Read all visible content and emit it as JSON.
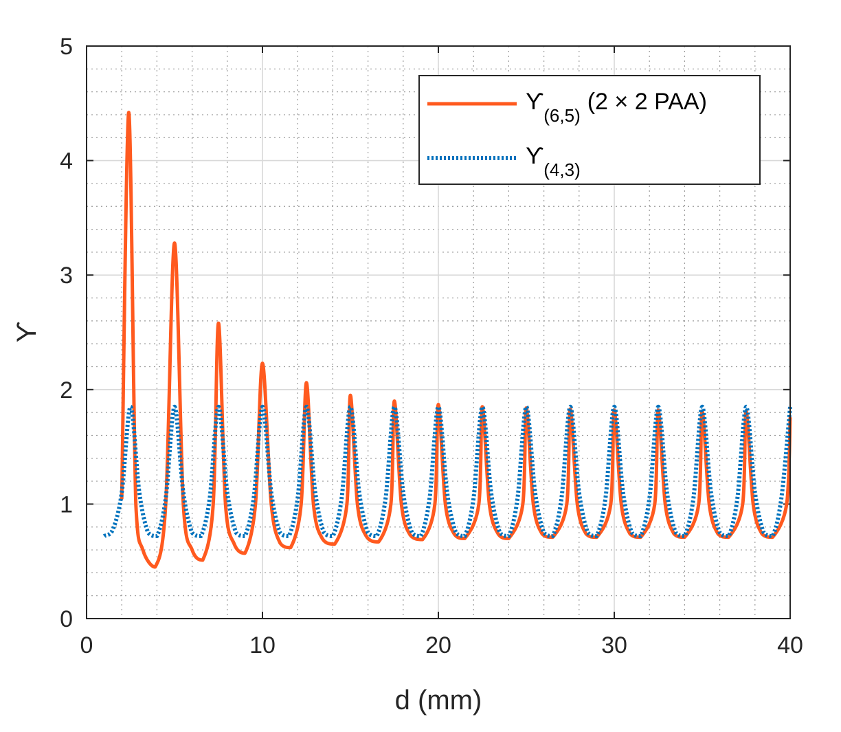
{
  "chart_data": {
    "type": "line",
    "title": "",
    "xlabel": "d (mm)",
    "ylabel": "ϒ",
    "xlim": [
      0,
      40
    ],
    "ylim": [
      0,
      5
    ],
    "xticks": [
      0,
      10,
      20,
      30,
      40
    ],
    "yticks": [
      0,
      1,
      2,
      3,
      4,
      5
    ],
    "grid": true,
    "minor_grid": true,
    "legend_position": "top-right",
    "colors": {
      "series1": "#FF5A1F",
      "series2": "#0072BD"
    },
    "series": [
      {
        "name": "ϒ(6,5) (2 × 2 PAA)",
        "legend_symbol": "ϒ",
        "legend_subscript": "(6,5)",
        "legend_suffix": "(2 × 2 PAA)",
        "style": "solid",
        "x": [
          2.0,
          2.4,
          2.8,
          3.2,
          3.9,
          4.5,
          5.0,
          5.5,
          6.0,
          6.6,
          7.2,
          7.5,
          7.9,
          8.4,
          9.0,
          9.6,
          10.0,
          10.5,
          11.0,
          11.6,
          12.2,
          12.5,
          12.9,
          13.4,
          14.1,
          14.8,
          15.0,
          15.4,
          15.9,
          16.6,
          17.3,
          17.5,
          17.9,
          18.4,
          19.1,
          19.8,
          20.0,
          20.4,
          20.9,
          21.5,
          22.3,
          22.5,
          22.9,
          23.4,
          24.0,
          24.8,
          25.0,
          25.4,
          25.9,
          26.5,
          27.3,
          27.5,
          27.9,
          28.4,
          29.0,
          29.8,
          30.0,
          30.4,
          30.9,
          31.5,
          32.3,
          32.5,
          32.9,
          33.4,
          34.0,
          34.8,
          35.0,
          35.4,
          35.9,
          36.5,
          37.3,
          37.5,
          37.9,
          38.4,
          39.0,
          39.8,
          40.0
        ],
        "y": [
          1.05,
          4.42,
          1.0,
          0.6,
          0.45,
          1.0,
          3.28,
          1.0,
          0.6,
          0.51,
          1.0,
          2.58,
          1.0,
          0.65,
          0.57,
          1.0,
          2.23,
          1.0,
          0.66,
          0.62,
          1.0,
          2.06,
          1.0,
          0.7,
          0.65,
          1.0,
          1.95,
          1.0,
          0.72,
          0.67,
          1.0,
          1.9,
          1.0,
          0.73,
          0.69,
          1.0,
          1.87,
          1.0,
          0.74,
          0.7,
          1.0,
          1.85,
          1.0,
          0.74,
          0.7,
          1.0,
          1.84,
          1.0,
          0.74,
          0.71,
          1.0,
          1.83,
          1.0,
          0.74,
          0.71,
          1.0,
          1.82,
          1.0,
          0.74,
          0.71,
          1.0,
          1.82,
          1.0,
          0.74,
          0.71,
          1.0,
          1.81,
          1.0,
          0.74,
          0.71,
          1.0,
          1.81,
          1.0,
          0.74,
          0.71,
          1.0,
          1.75
        ]
      },
      {
        "name": "ϒ(4,3)",
        "legend_symbol": "ϒ",
        "legend_subscript": "(4,3)",
        "legend_suffix": "",
        "style": "dotted",
        "x": [
          1.0,
          1.5,
          2.0,
          2.5,
          3.0,
          3.5,
          4.0,
          4.5,
          5.0,
          5.5,
          6.0,
          6.5,
          7.0,
          7.5,
          8.0,
          8.5,
          9.0,
          9.5,
          10.0,
          10.5,
          11.0,
          11.5,
          12.0,
          12.5,
          13.0,
          13.5,
          14.0,
          14.5,
          15.0,
          15.5,
          16.0,
          16.5,
          17.0,
          17.5,
          18.0,
          18.5,
          19.0,
          19.5,
          20.0,
          20.5,
          21.0,
          21.5,
          22.0,
          22.5,
          23.0,
          23.5,
          24.0,
          24.5,
          25.0,
          25.5,
          26.0,
          26.5,
          27.0,
          27.5,
          28.0,
          28.5,
          29.0,
          29.5,
          30.0,
          30.5,
          31.0,
          31.5,
          32.0,
          32.5,
          33.0,
          33.5,
          34.0,
          34.5,
          35.0,
          35.5,
          36.0,
          36.5,
          37.0,
          37.5,
          38.0,
          38.5,
          39.0,
          39.5,
          40.0
        ],
        "y": [
          0.72,
          0.78,
          1.1,
          1.85,
          1.1,
          0.75,
          0.72,
          1.05,
          1.85,
          1.1,
          0.75,
          0.72,
          1.05,
          1.85,
          1.1,
          0.75,
          0.72,
          1.05,
          1.85,
          1.1,
          0.75,
          0.72,
          1.05,
          1.85,
          1.1,
          0.75,
          0.72,
          1.05,
          1.85,
          1.1,
          0.75,
          0.72,
          1.05,
          1.85,
          1.1,
          0.75,
          0.72,
          1.05,
          1.85,
          1.1,
          0.75,
          0.72,
          1.05,
          1.85,
          1.1,
          0.75,
          0.72,
          1.05,
          1.85,
          1.1,
          0.75,
          0.72,
          1.05,
          1.85,
          1.1,
          0.75,
          0.72,
          1.05,
          1.85,
          1.1,
          0.75,
          0.72,
          1.05,
          1.85,
          1.1,
          0.75,
          0.72,
          1.05,
          1.85,
          1.1,
          0.75,
          0.72,
          1.05,
          1.85,
          1.1,
          0.75,
          0.72,
          1.05,
          1.85
        ]
      }
    ]
  }
}
